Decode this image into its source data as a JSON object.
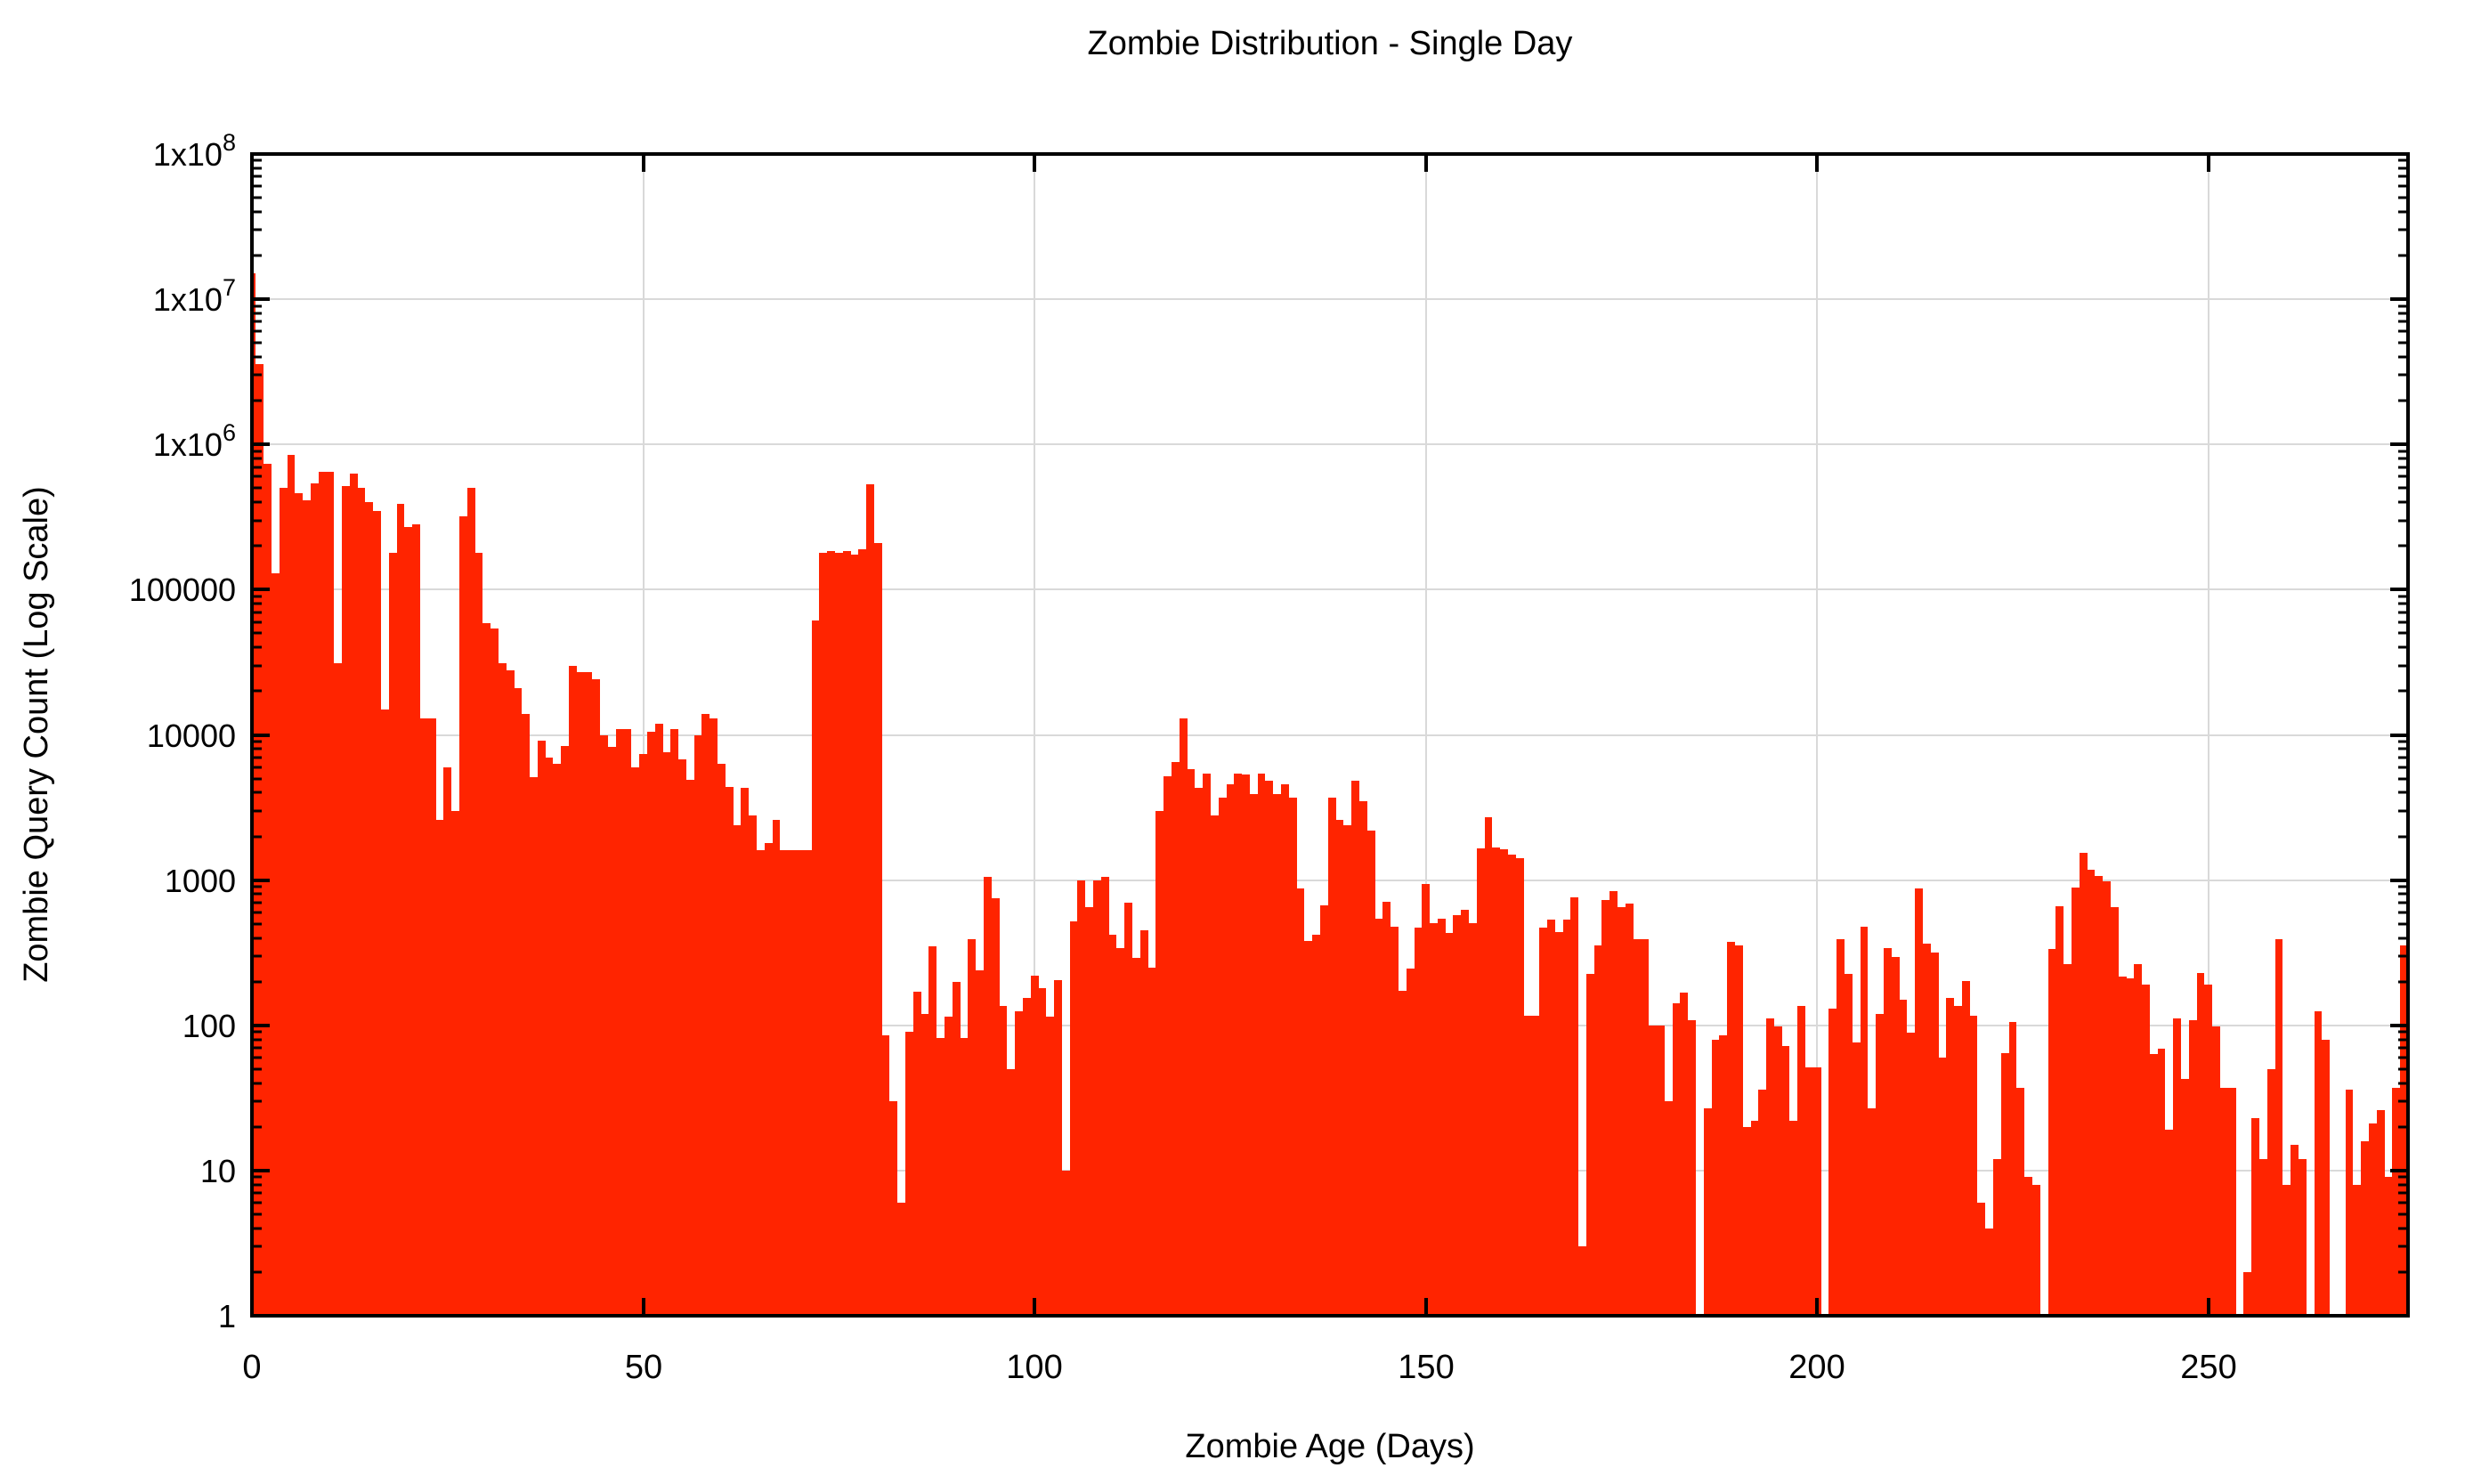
{
  "chart_data": {
    "type": "bar",
    "title": "Zombie Distribution - Single Day",
    "xlabel": "Zombie Age (Days)",
    "ylabel": "Zombie Query Count (Log Scale)",
    "ylog": true,
    "ylim": [
      1,
      100000000
    ],
    "xlim": [
      0,
      275.5
    ],
    "grid": true,
    "legend": "none",
    "bar_color": "#ff2400",
    "grid_color": "#d9d9d9",
    "axis_color": "#000000",
    "xticks": [
      0,
      50,
      100,
      150,
      200,
      250
    ],
    "yticks": [
      {
        "value": 1,
        "label": "1"
      },
      {
        "value": 10,
        "label": "10"
      },
      {
        "value": 100,
        "label": "100"
      },
      {
        "value": 1000,
        "label": "1000"
      },
      {
        "value": 10000,
        "label": "10000"
      },
      {
        "value": 100000,
        "label": "100000"
      },
      {
        "value": 1000000,
        "label": "1x10",
        "sup": "6"
      },
      {
        "value": 10000000,
        "label": "1x10",
        "sup": "7"
      },
      {
        "value": 100000000,
        "label": "1x10",
        "sup": "8"
      }
    ],
    "x_start_day": 0,
    "missing_days": [
      185,
      201,
      229,
      254,
      263,
      266,
      267
    ],
    "values": [
      15000000,
      3600000,
      740000,
      130000,
      500000,
      850000,
      460000,
      410000,
      540000,
      650000,
      650000,
      31000,
      520000,
      630000,
      500000,
      400000,
      350000,
      15000,
      180000,
      390000,
      270000,
      280000,
      13000,
      13000,
      2600,
      6000,
      3000,
      320000,
      500000,
      180000,
      59000,
      54000,
      31000,
      28000,
      21000,
      14000,
      5100,
      9100,
      7000,
      6300,
      8400,
      30000,
      27000,
      27000,
      24000,
      10000,
      8300,
      11000,
      11000,
      6000,
      7400,
      10500,
      12000,
      7600,
      11000,
      6800,
      4900,
      10000,
      14000,
      13000,
      6300,
      4400,
      2400,
      4300,
      2800,
      1600,
      1800,
      2600,
      1600,
      1600,
      1600,
      1600,
      61000,
      180000,
      185000,
      180000,
      185000,
      175000,
      190000,
      530000,
      210000,
      85,
      30,
      6,
      90,
      170,
      120,
      350,
      82,
      115,
      200,
      82,
      390,
      240,
      1050,
      750,
      135,
      50,
      125,
      155,
      220,
      180,
      115,
      205,
      10,
      520,
      1000,
      650,
      1000,
      1050,
      420,
      340,
      700,
      290,
      450,
      250,
      3000,
      5200,
      6500,
      13000,
      5800,
      4300,
      5400,
      2800,
      3700,
      4600,
      5400,
      5300,
      3900,
      5400,
      4800,
      3900,
      4600,
      3700,
      870,
      380,
      420,
      670,
      3700,
      2600,
      2400,
      4800,
      3500,
      2200,
      545,
      705,
      480,
      172,
      247,
      470,
      935,
      505,
      545,
      435,
      570,
      620,
      505,
      1650,
      2700,
      1680,
      1640,
      1490,
      1410,
      117,
      117,
      470,
      533,
      440,
      533,
      760,
      3,
      225,
      355,
      730,
      845,
      655,
      690,
      390,
      390,
      100,
      100,
      30,
      141,
      167,
      109,
      0,
      27,
      80,
      85,
      373,
      355,
      20,
      22,
      36,
      112,
      98,
      72,
      22,
      135,
      51,
      51,
      0,
      130,
      390,
      225,
      76,
      480,
      27,
      120,
      340,
      295,
      151,
      89,
      870,
      365,
      315,
      60,
      155,
      135,
      202,
      117,
      6,
      4,
      12,
      64,
      105,
      37,
      9,
      8,
      0,
      336,
      665,
      265,
      890,
      1540,
      1180,
      1070,
      985,
      650,
      216,
      211,
      265,
      190,
      63,
      69,
      19,
      112,
      43,
      109,
      230,
      190,
      98,
      37,
      37,
      0,
      2,
      23,
      12,
      50,
      390,
      8,
      15,
      12,
      0,
      125,
      80,
      0,
      0,
      36,
      8,
      16,
      21,
      26,
      9,
      37,
      355
    ]
  }
}
